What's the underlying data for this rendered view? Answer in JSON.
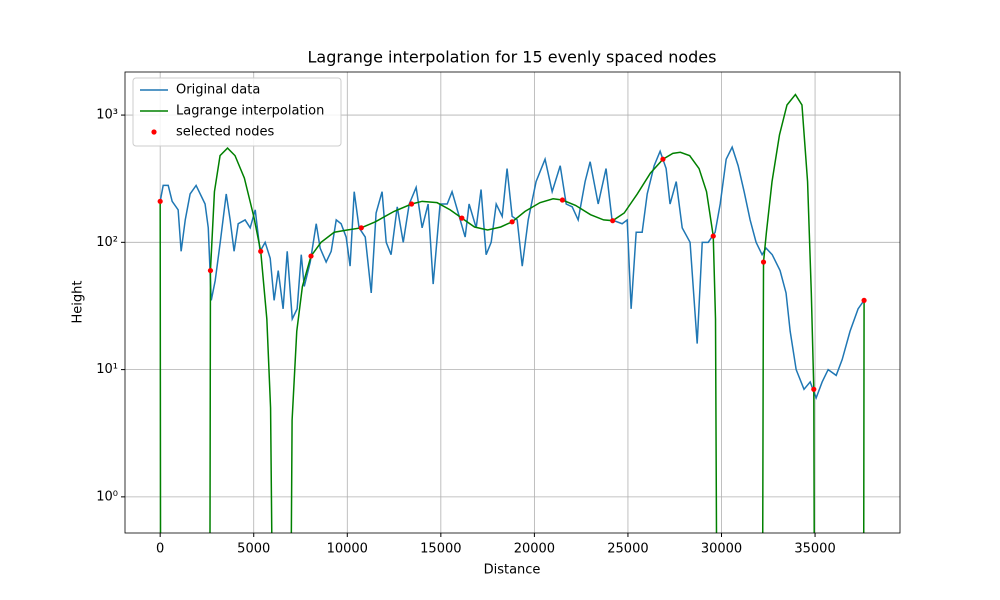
{
  "chart_data": {
    "type": "line",
    "title": "Lagrange interpolation for 15 evenly spaced nodes",
    "xlabel": "Distance",
    "ylabel": "Height",
    "xlim": [
      -1880,
      39540
    ],
    "ylim": [
      0.52,
      2180
    ],
    "yscale": "log",
    "xticks": [
      0,
      5000,
      10000,
      15000,
      20000,
      25000,
      30000,
      35000
    ],
    "yticks": [
      {
        "value": 1,
        "label": "10⁰"
      },
      {
        "value": 10,
        "label": "10¹"
      },
      {
        "value": 100,
        "label": "10²"
      },
      {
        "value": 1000,
        "label": "10³"
      }
    ],
    "grid": true,
    "legend": "upper left",
    "series": [
      {
        "name": "Original data",
        "color": "#1f77b4",
        "type": "line",
        "x": [
          0,
          160,
          430,
          640,
          960,
          1120,
          1340,
          1600,
          1920,
          2400,
          2570,
          2730,
          2940,
          3210,
          3530,
          3740,
          3950,
          4170,
          4540,
          4810,
          5080,
          5340,
          5610,
          5880,
          6090,
          6310,
          6570,
          6790,
          7060,
          7320,
          7540,
          7700,
          8020,
          8340,
          8550,
          8870,
          9140,
          9410,
          9670,
          9940,
          10150,
          10370,
          10630,
          10960,
          11280,
          11540,
          11860,
          12080,
          12340,
          12670,
          12990,
          13310,
          13680,
          14000,
          14320,
          14590,
          14960,
          15340,
          15600,
          15930,
          16300,
          16510,
          16890,
          17150,
          17420,
          17690,
          17960,
          18280,
          18540,
          18810,
          19080,
          19350,
          19670,
          20090,
          20570,
          20950,
          21380,
          21700,
          22020,
          22340,
          22710,
          22980,
          23410,
          23830,
          24150,
          24690,
          24960,
          25170,
          25440,
          25760,
          26030,
          26400,
          26720,
          27040,
          27250,
          27580,
          27900,
          28320,
          28700,
          28970,
          29290,
          29660,
          29930,
          30250,
          30570,
          30890,
          31210,
          31530,
          31850,
          32170,
          32380,
          32710,
          33130,
          33450,
          33670,
          33990,
          34410,
          34740,
          35060,
          35380,
          35700,
          36130,
          36450,
          36870,
          37300,
          37620
        ],
        "values": [
          210,
          280,
          280,
          210,
          180,
          85,
          150,
          240,
          280,
          200,
          130,
          35,
          50,
          100,
          240,
          150,
          85,
          140,
          150,
          130,
          180,
          85,
          100,
          75,
          35,
          60,
          30,
          85,
          25,
          30,
          80,
          45,
          70,
          140,
          90,
          70,
          85,
          150,
          140,
          110,
          65,
          250,
          130,
          110,
          40,
          170,
          250,
          100,
          80,
          190,
          100,
          200,
          270,
          130,
          200,
          47,
          200,
          200,
          250,
          170,
          110,
          200,
          130,
          260,
          80,
          100,
          200,
          160,
          380,
          160,
          150,
          65,
          150,
          300,
          450,
          250,
          400,
          200,
          190,
          150,
          300,
          430,
          200,
          380,
          150,
          140,
          150,
          30,
          120,
          120,
          240,
          400,
          520,
          380,
          200,
          300,
          130,
          100,
          16,
          100,
          100,
          120,
          200,
          450,
          560,
          400,
          250,
          150,
          100,
          80,
          90,
          80,
          60,
          40,
          20,
          10,
          7,
          8,
          6,
          8,
          10,
          9,
          12,
          20,
          30,
          35
        ]
      },
      {
        "name": "Lagrange interpolation",
        "color": "#008000",
        "type": "line",
        "x": [
          0,
          20,
          1300,
          2660,
          2687,
          2900,
          3200,
          3600,
          4000,
          4500,
          5000,
          5374,
          5700,
          5900,
          5980,
          6500,
          7000,
          7050,
          7300,
          7600,
          8061,
          8600,
          9300,
          10000,
          10749,
          11500,
          12500,
          13436,
          14000,
          14800,
          15500,
          16123,
          16800,
          17500,
          18200,
          18810,
          19500,
          20300,
          21000,
          21497,
          22200,
          23000,
          23700,
          24184,
          24800,
          25500,
          26200,
          26871,
          27400,
          27800,
          28300,
          28800,
          29200,
          29559,
          29680,
          29740,
          31000,
          32200,
          32230,
          32246,
          32400,
          32700,
          33100,
          33500,
          33950,
          34300,
          34600,
          34800,
          34933,
          34960,
          36000,
          37600,
          37620
        ],
        "values": [
          210,
          0.3,
          null,
          0.3,
          60,
          250,
          480,
          550,
          480,
          320,
          160,
          85,
          25,
          5,
          0.3,
          null,
          0.3,
          4,
          20,
          45,
          78,
          100,
          120,
          125,
          130,
          145,
          175,
          200,
          210,
          205,
          180,
          155,
          132,
          125,
          132,
          145,
          175,
          205,
          220,
          215,
          195,
          165,
          150,
          148,
          170,
          240,
          350,
          450,
          500,
          510,
          480,
          380,
          250,
          112,
          25,
          0.3,
          null,
          0.3,
          15,
          70,
          120,
          300,
          700,
          1200,
          1450,
          1200,
          300,
          40,
          7,
          0.3,
          null,
          0.3,
          35
        ]
      },
      {
        "name": "selected nodes",
        "color": "#ff0000",
        "type": "scatter",
        "x": [
          0,
          2687,
          5374,
          8061,
          10749,
          13436,
          16123,
          18810,
          21497,
          24184,
          26871,
          29559,
          32246,
          34933,
          37620
        ],
        "values": [
          210,
          60,
          85,
          78,
          130,
          200,
          155,
          145,
          215,
          148,
          450,
          112,
          70,
          7,
          35
        ]
      }
    ]
  }
}
